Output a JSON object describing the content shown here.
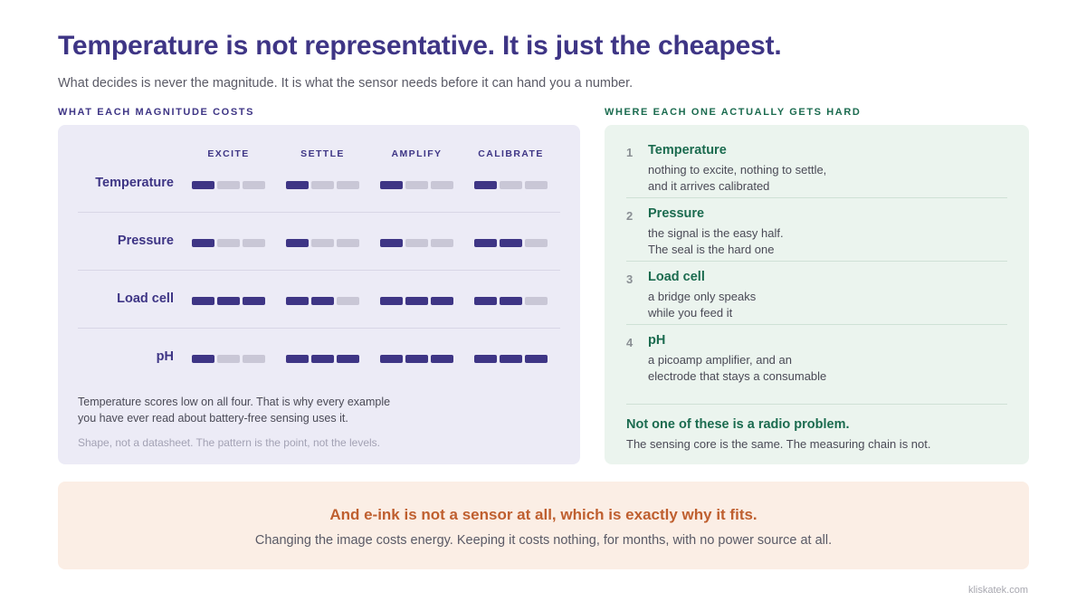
{
  "header": {
    "title": "Temperature is not representative. It is just the cheapest.",
    "subtitle": "What decides is never the magnitude. It is what the sensor needs before it can hand you a number."
  },
  "left_panel": {
    "section_label": "WHAT EACH MAGNITUDE COSTS",
    "note_line1": "Temperature scores low on all four. That is why every example",
    "note_line2": "you have ever read about battery-free sensing uses it.",
    "note_muted": "Shape, not a datasheet. The pattern is the point, not the levels."
  },
  "chart_data": {
    "type": "table",
    "columns": [
      "EXCITE",
      "SETTLE",
      "AMPLIFY",
      "CALIBRATE"
    ],
    "max_level": 3,
    "rows": [
      {
        "name": "Temperature",
        "levels": [
          1,
          1,
          1,
          1
        ]
      },
      {
        "name": "Pressure",
        "levels": [
          1,
          1,
          1,
          2
        ]
      },
      {
        "name": "Load cell",
        "levels": [
          3,
          2,
          3,
          2
        ]
      },
      {
        "name": "pH",
        "levels": [
          1,
          3,
          3,
          3
        ]
      }
    ],
    "colors": {
      "filled": "#3e3585",
      "empty": "#c9c7d6"
    }
  },
  "right_panel": {
    "section_label": "WHERE EACH ONE ACTUALLY GETS HARD",
    "items": [
      {
        "num": "1",
        "title": "Temperature",
        "line1": "nothing to excite, nothing to settle,",
        "line2": "and it arrives calibrated"
      },
      {
        "num": "2",
        "title": "Pressure",
        "line1": "the signal is the easy half.",
        "line2": "The seal is the hard one"
      },
      {
        "num": "3",
        "title": "Load cell",
        "line1": "a bridge only speaks",
        "line2": "while you feed it"
      },
      {
        "num": "4",
        "title": "pH",
        "line1": "a picoamp amplifier, and an",
        "line2": "electrode that stays a consumable"
      }
    ],
    "footer_title": "Not one of these is a radio problem.",
    "footer_text": "The sensing core is the same. The measuring chain is not."
  },
  "banner": {
    "title": "And e-ink is not a sensor at all, which is exactly why it fits.",
    "text": "Changing the image costs energy. Keeping it costs nothing, for months, with no power source at all."
  },
  "footer": {
    "site": "kliskatek.com"
  }
}
